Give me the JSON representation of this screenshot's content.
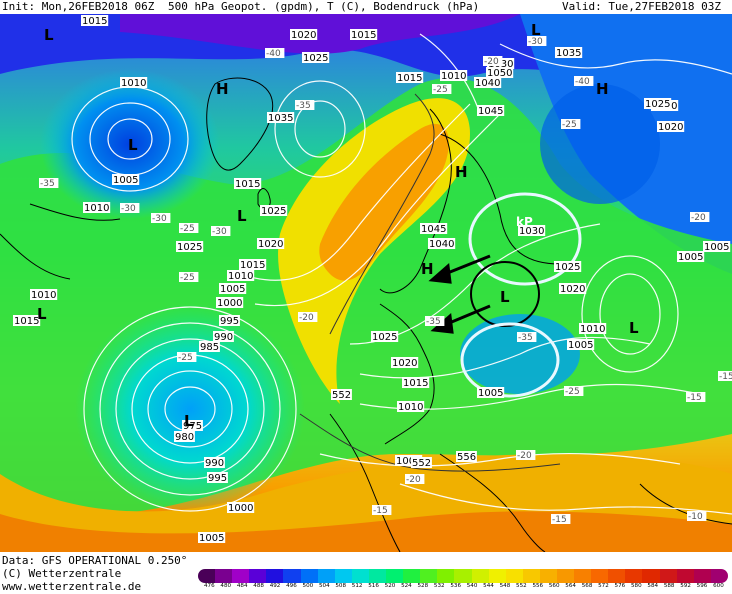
{
  "header": {
    "init": "Init: Mon,26FEB2018 06Z",
    "title": "500 hPa Geopot. (gpdm), T (C), Bodendruck (hPa)",
    "valid": "Valid: Tue,27FEB2018 03Z"
  },
  "footer": {
    "data_line": "Data: GFS OPERATIONAL 0.250°",
    "copyright_line": "(C) Wetterzentrale",
    "url_line": "www.wetterzentrale.de"
  },
  "colorbar": {
    "labels": [
      "476",
      "480",
      "484",
      "488",
      "492",
      "496",
      "500",
      "504",
      "508",
      "512",
      "516",
      "520",
      "524",
      "528",
      "532",
      "536",
      "540",
      "544",
      "548",
      "552",
      "556",
      "560",
      "564",
      "568",
      "572",
      "576",
      "580",
      "584",
      "588",
      "592",
      "596",
      "600"
    ],
    "colors": [
      "#4a0058",
      "#7a0090",
      "#a000c8",
      "#5a00d8",
      "#2010e0",
      "#1040f0",
      "#0070f8",
      "#00a0f8",
      "#00c8f0",
      "#00e0d0",
      "#00e8a0",
      "#00f070",
      "#20f040",
      "#50f020",
      "#80f000",
      "#a8f000",
      "#d0f000",
      "#f0f000",
      "#f8e000",
      "#f8c800",
      "#f8b000",
      "#f89800",
      "#f88000",
      "#f86800",
      "#f05000",
      "#e83800",
      "#e02800",
      "#d01818",
      "#c00830",
      "#b00050",
      "#a00070"
    ]
  },
  "map": {
    "pressure_labels": [
      "1015",
      "1020",
      "1015",
      "1025",
      "1035",
      "1010",
      "1030",
      "1035",
      "1020",
      "1005",
      "1010",
      "1025",
      "1025",
      "1020",
      "1015",
      "1010",
      "1005",
      "1000",
      "995",
      "990",
      "985",
      "975",
      "980",
      "990",
      "995",
      "1000",
      "1005",
      "1040",
      "1045",
      "1050",
      "1045",
      "1040",
      "1030",
      "1025",
      "1020",
      "1010",
      "1005",
      "1005",
      "1025",
      "1020",
      "1015",
      "1010",
      "1005",
      "1010",
      "1015",
      "1005",
      "1025",
      "1020",
      "1015",
      "1005",
      "1010",
      "1015",
      "552",
      "552",
      "556",
      "552",
      "552"
    ],
    "temp_labels": [
      "-40",
      "-35",
      "-30",
      "-25",
      "-35",
      "-30",
      "-25",
      "-30",
      "-25",
      "-20",
      "-35",
      "-40",
      "-30",
      "-25",
      "-20",
      "-25",
      "-20",
      "-35",
      "-25",
      "-20",
      "-15",
      "-15",
      "-15",
      "-10",
      "-20",
      "-15"
    ],
    "centers": [
      "L",
      "H",
      "L",
      "H",
      "L",
      "L",
      "L",
      "L",
      "L",
      "H",
      "H",
      "L"
    ],
    "kp_label": "kP"
  }
}
